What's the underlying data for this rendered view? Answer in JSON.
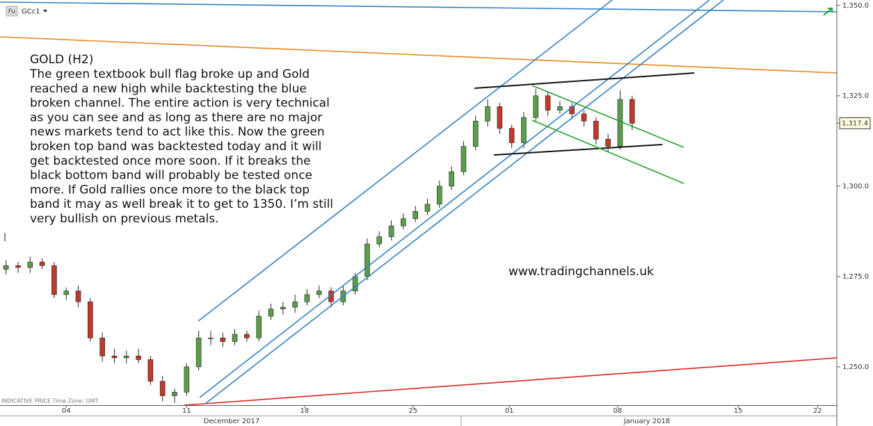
{
  "chart_data": {
    "type": "candlestick",
    "symbol_badge": "Fu",
    "symbol": "GCc1",
    "annotation_title": "GOLD (H2)",
    "annotation_lines": [
      "The green textbook bull flag broke up and Gold",
      "reached a new high while backtesting the blue",
      "broken channel. The entire action is very technical",
      "as you can see and as long as there are no major",
      "news markets tend to act like this. Now the green",
      "broken top band was backtested today and it will",
      "get backtested once more soon. If it breaks the",
      "black bottom band will probably be tested once",
      "more. If Gold rallies once more to the black top",
      "band it may as well break it to get to 1350. I’m still",
      "very bullish on previous metals."
    ],
    "watermark": "www.tradingchannels.uk",
    "footer_note": "INDICATIVE PRICE   Time Zone: GMT",
    "month_labels": [
      "December 2017",
      "January 2018"
    ],
    "x": [
      -2.5,
      -2,
      -1.5,
      -1,
      -0.5,
      0,
      0.5,
      1,
      1.5,
      2,
      2.5,
      3,
      3.5,
      4,
      4.5,
      5,
      5.5,
      6,
      6.5,
      7,
      7.5,
      8,
      8.5,
      9,
      9.5,
      10,
      10.5,
      11,
      11.5,
      12,
      12.5,
      13,
      13.5,
      14,
      14.5,
      15,
      15.5,
      16,
      16.5,
      17,
      17.5,
      18,
      18.5,
      19,
      19.5,
      20,
      20.5,
      21,
      21.5,
      22,
      22.5,
      23,
      23.5
    ],
    "open": [
      1277,
      1278,
      1277.5,
      1279,
      1278,
      1270,
      1271,
      1268,
      1258,
      1253,
      1252.5,
      1253,
      1252,
      1246,
      1242,
      1243,
      1250,
      1258,
      1258,
      1257,
      1259,
      1258,
      1264,
      1266,
      1266.5,
      1268,
      1270,
      1271,
      1268,
      1271,
      1275,
      1284,
      1286,
      1289,
      1291,
      1293,
      1295,
      1300,
      1304,
      1311,
      1318,
      1322,
      1316,
      1312,
      1319,
      1325,
      1321,
      1322,
      1320,
      1318,
      1313,
      1311,
      1324
    ],
    "high": [
      1279.5,
      1279,
      1280.5,
      1280,
      1279,
      1272,
      1272.5,
      1269,
      1259.5,
      1255,
      1254.5,
      1255,
      1253,
      1247.5,
      1244,
      1251,
      1260,
      1260,
      1259.5,
      1260.5,
      1260,
      1265.5,
      1267.5,
      1268,
      1270,
      1271.5,
      1272.5,
      1272,
      1272.5,
      1276,
      1285.5,
      1287.5,
      1290.5,
      1292.5,
      1294.5,
      1296.5,
      1301.5,
      1305.5,
      1312.5,
      1319.5,
      1324,
      1323,
      1317,
      1320.5,
      1327,
      1326,
      1323.5,
      1323,
      1321,
      1319,
      1314.5,
      1326.5,
      1325
    ],
    "low": [
      1275.5,
      1276,
      1276,
      1277,
      1269,
      1268.5,
      1266.5,
      1257,
      1251.5,
      1251,
      1251,
      1251,
      1245,
      1240.5,
      1240,
      1242,
      1249,
      1256,
      1255.5,
      1256,
      1257,
      1257,
      1263,
      1264.5,
      1265,
      1267,
      1269,
      1266.5,
      1267,
      1270,
      1274,
      1283,
      1285,
      1288,
      1290,
      1292,
      1294,
      1299,
      1303,
      1310,
      1316.5,
      1314.5,
      1310.5,
      1310.5,
      1318,
      1319.5,
      1320,
      1318.5,
      1316.5,
      1311.5,
      1309.5,
      1310,
      1315.5
    ],
    "close": [
      1278,
      1277.5,
      1279,
      1278,
      1270,
      1271,
      1268,
      1258,
      1253,
      1252.5,
      1253,
      1252,
      1246,
      1242,
      1243,
      1250,
      1258,
      1258,
      1257,
      1259,
      1258,
      1264,
      1266,
      1266.5,
      1268,
      1270,
      1271,
      1268,
      1271,
      1275,
      1284,
      1286,
      1289,
      1291,
      1293,
      1295,
      1300,
      1304,
      1311,
      1318,
      1322,
      1316,
      1312,
      1319,
      1325,
      1321,
      1322,
      1320,
      1318,
      1313,
      1311,
      1324,
      1317.4
    ],
    "up_color": "#5a9e4b",
    "down_color": "#c0392b",
    "last_price": {
      "value": 1317.4,
      "label": "1,317.4"
    },
    "xlim": [
      -2.75,
      32.0
    ],
    "xticks": [
      {
        "value": 0,
        "label": "04"
      },
      {
        "value": 5,
        "label": "11"
      },
      {
        "value": 9.9,
        "label": "18"
      },
      {
        "value": 14.4,
        "label": "25"
      },
      {
        "value": 18.4,
        "label": "01"
      },
      {
        "value": 22.9,
        "label": "08"
      },
      {
        "value": 27.9,
        "label": "15"
      },
      {
        "value": 31.2,
        "label": "22"
      }
    ],
    "ylim": [
      1239.4,
      1351.5
    ],
    "yticks": [
      {
        "value": 1250,
        "label": "1,250.0"
      },
      {
        "value": 1275,
        "label": "1,275.0"
      },
      {
        "value": 1300,
        "label": "1,300.0"
      },
      {
        "value": 1325,
        "label": "1,325.0"
      },
      {
        "value": 1350,
        "label": "1,350.0"
      }
    ]
  }
}
